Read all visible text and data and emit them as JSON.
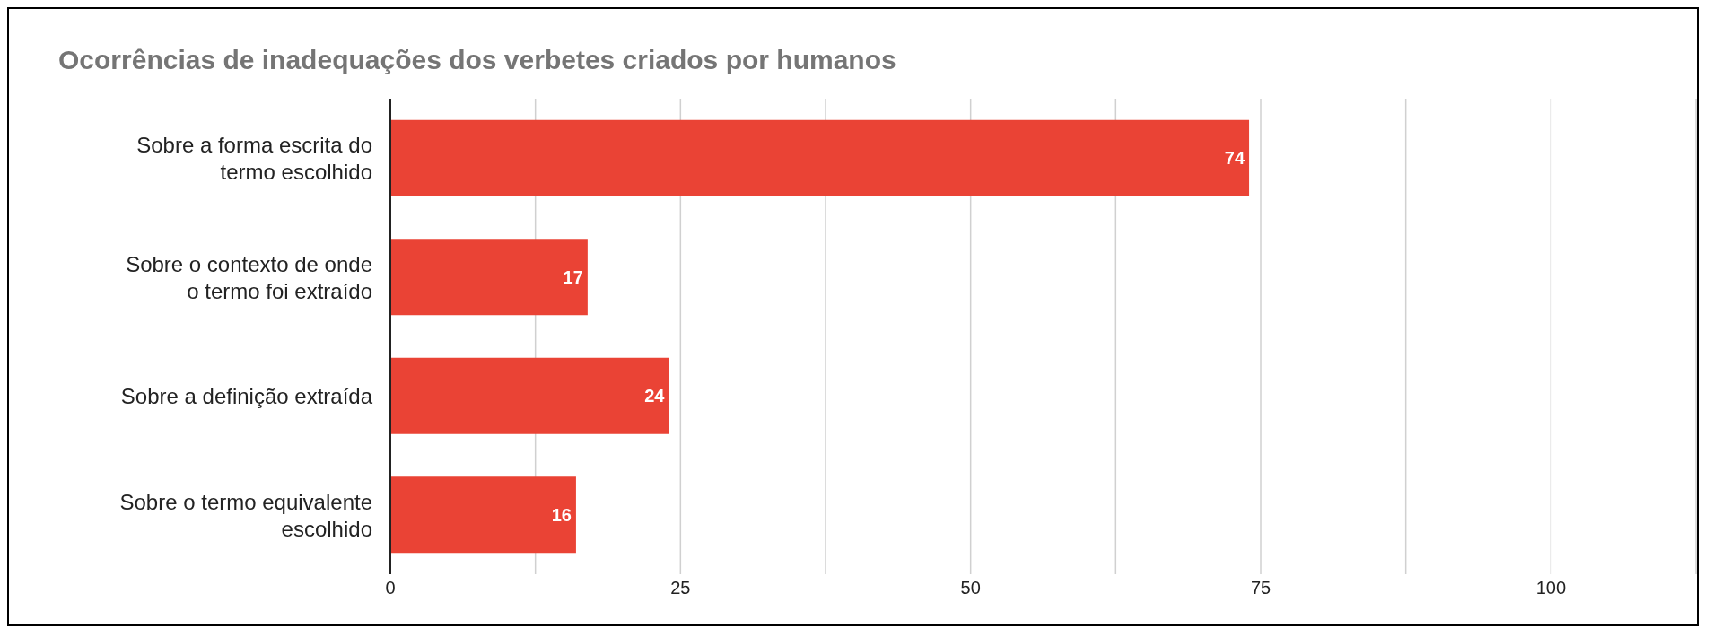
{
  "chart_data": {
    "type": "bar",
    "orientation": "horizontal",
    "title": "Ocorrências de inadequações dos verbetes criados por humanos",
    "categories": [
      "Sobre a forma escrita do termo escolhido",
      "Sobre o contexto de onde o termo foi extraído",
      "Sobre a definição extraída",
      "Sobre o termo equivalente escolhido"
    ],
    "values": [
      74,
      17,
      24,
      16
    ],
    "color": "#ea4335",
    "data_labels": true,
    "xlim": [
      0,
      112.5
    ],
    "xticks": [
      0,
      {
        "value": 12.5,
        "label": null
      },
      25,
      {
        "value": 37.5,
        "label": null
      },
      50,
      {
        "value": 62.5,
        "label": null
      },
      75,
      {
        "value": 87.5,
        "label": null
      },
      100,
      {
        "value": 112.5,
        "label": null
      }
    ],
    "grid": "x"
  }
}
